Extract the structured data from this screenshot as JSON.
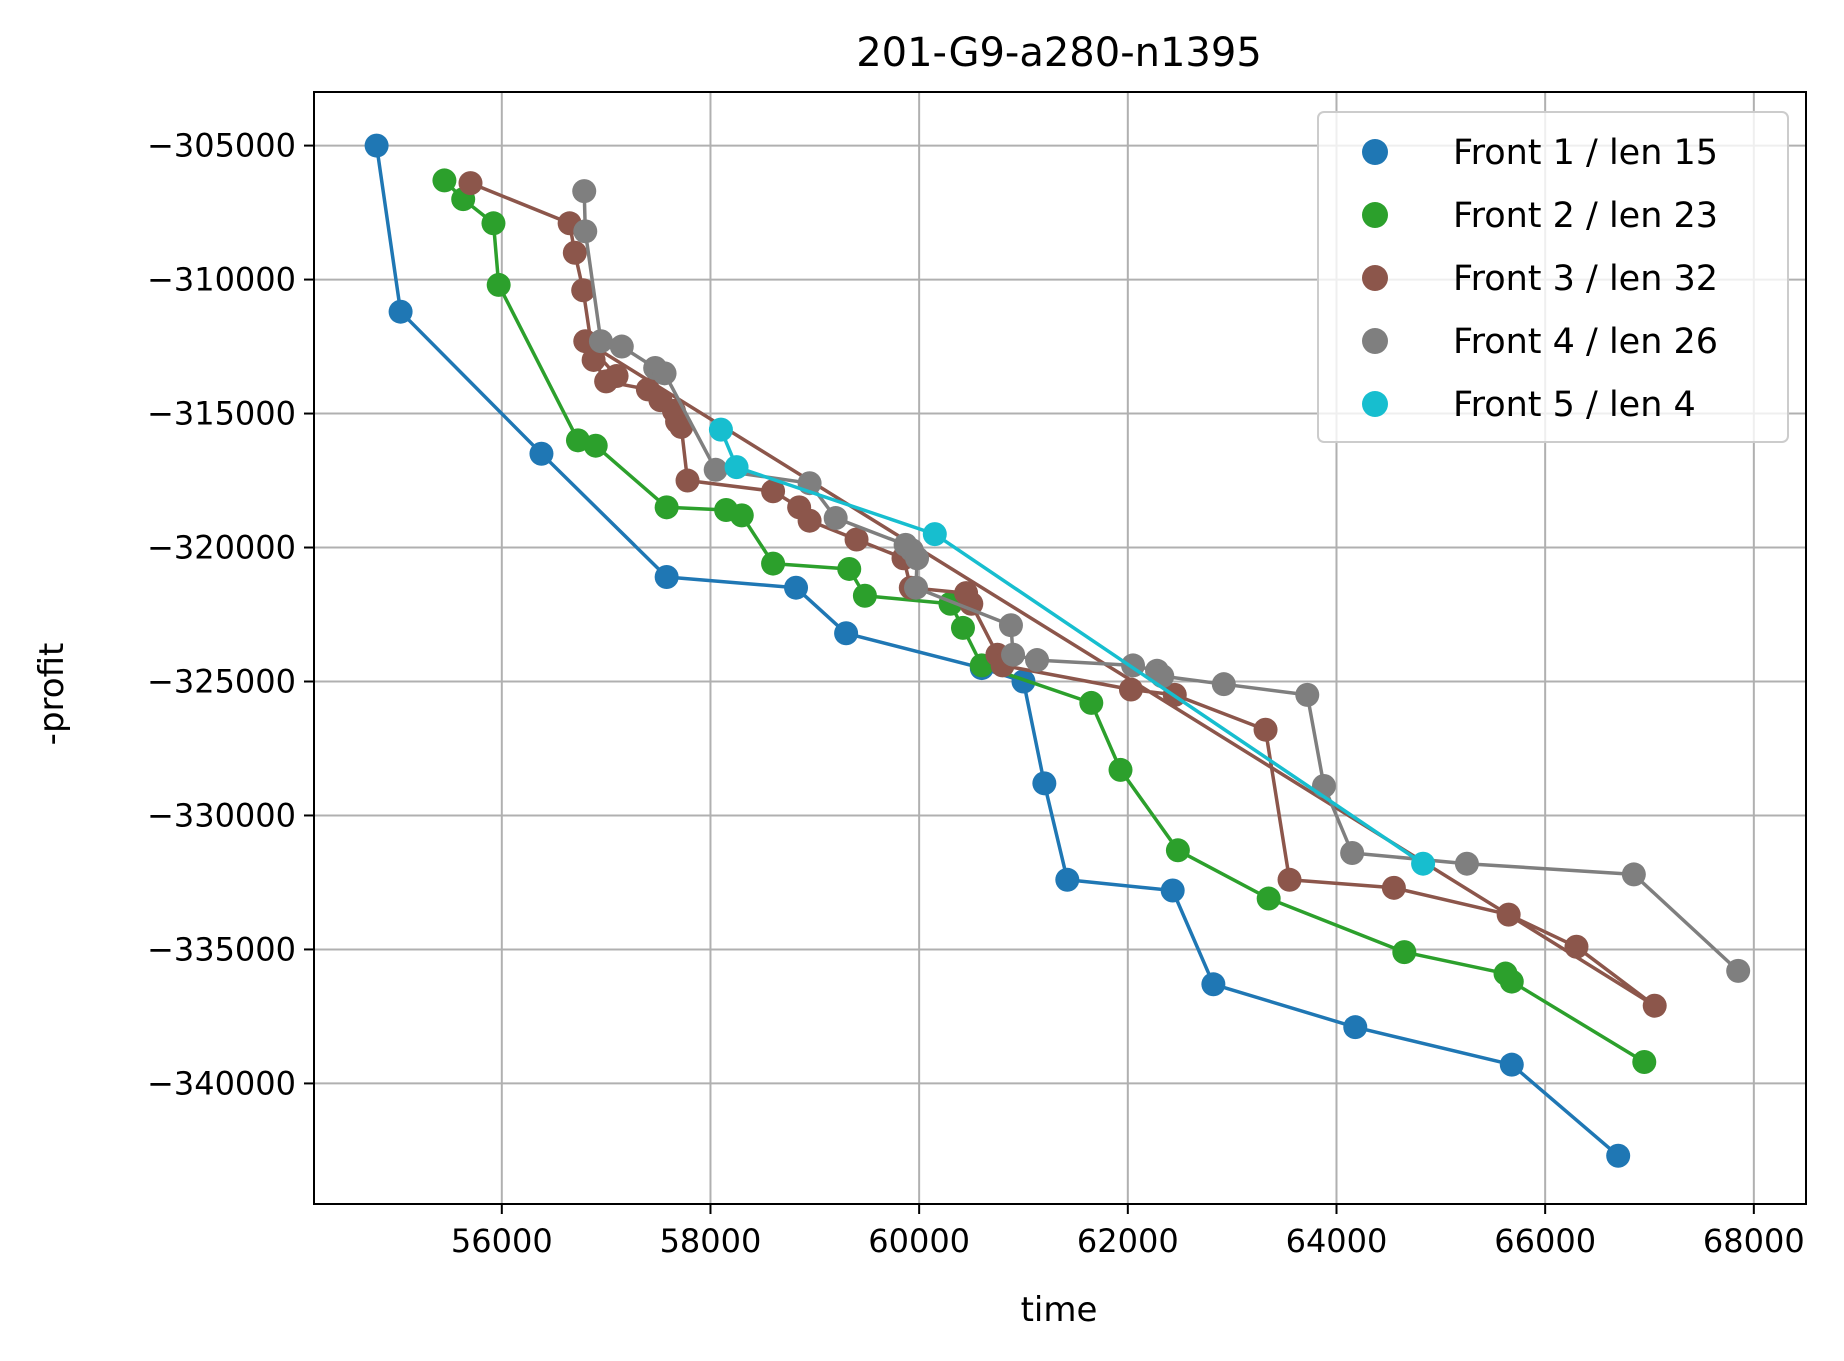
{
  "chart_data": {
    "type": "scatter",
    "title": "201-G9-a280-n1395",
    "xlabel": "time",
    "ylabel": "-profit",
    "xlim": [
      54200,
      68500
    ],
    "ylim": [
      -344500,
      -303000
    ],
    "xticks": [
      56000,
      58000,
      60000,
      62000,
      64000,
      66000,
      68000
    ],
    "xtick_labels": [
      "56000",
      "58000",
      "60000",
      "62000",
      "64000",
      "66000",
      "68000"
    ],
    "yticks": [
      -305000,
      -310000,
      -315000,
      -320000,
      -325000,
      -330000,
      -335000,
      -340000
    ],
    "ytick_labels": [
      "−305000",
      "−310000",
      "−315000",
      "−320000",
      "−325000",
      "−330000",
      "−335000",
      "−340000"
    ],
    "grid": true,
    "legend_position": "top-right",
    "series": [
      {
        "name": "Front 1 / len 15",
        "color": "#1f77b4",
        "points": [
          [
            54800,
            -305000
          ],
          [
            55030,
            -311200
          ],
          [
            56380,
            -316500
          ],
          [
            57580,
            -321100
          ],
          [
            58820,
            -321500
          ],
          [
            59300,
            -323200
          ],
          [
            60600,
            -324500
          ],
          [
            61000,
            -325000
          ],
          [
            61200,
            -328800
          ],
          [
            61420,
            -332400
          ],
          [
            62430,
            -332800
          ],
          [
            62820,
            -336300
          ],
          [
            64180,
            -337900
          ],
          [
            65680,
            -339300
          ],
          [
            66700,
            -342700
          ]
        ]
      },
      {
        "name": "Front 2 / len 23",
        "color": "#2ca02c",
        "points": [
          [
            55450,
            -306300
          ],
          [
            55630,
            -307000
          ],
          [
            55920,
            -307900
          ],
          [
            55970,
            -310200
          ],
          [
            56730,
            -316000
          ],
          [
            56900,
            -316200
          ],
          [
            57580,
            -318500
          ],
          [
            58150,
            -318600
          ],
          [
            58300,
            -318800
          ],
          [
            58600,
            -320600
          ],
          [
            59330,
            -320800
          ],
          [
            59480,
            -321800
          ],
          [
            60300,
            -322100
          ],
          [
            60420,
            -323000
          ],
          [
            60600,
            -324400
          ],
          [
            61650,
            -325800
          ],
          [
            61930,
            -328300
          ],
          [
            62480,
            -331300
          ],
          [
            63350,
            -333100
          ],
          [
            64650,
            -335100
          ],
          [
            65620,
            -335900
          ],
          [
            65680,
            -336200
          ],
          [
            66950,
            -339200
          ]
        ]
      },
      {
        "name": "Front 3 / len 32",
        "color": "#8c564b",
        "points": [
          [
            55700,
            -306400
          ],
          [
            56650,
            -307900
          ],
          [
            56700,
            -309000
          ],
          [
            56780,
            -310400
          ],
          [
            56880,
            -313000
          ],
          [
            57000,
            -313800
          ],
          [
            57400,
            -314100
          ],
          [
            57520,
            -314500
          ],
          [
            57650,
            -314900
          ],
          [
            57680,
            -315300
          ],
          [
            57720,
            -315500
          ],
          [
            57780,
            -317500
          ],
          [
            58600,
            -317900
          ],
          [
            58850,
            -318500
          ],
          [
            58950,
            -319000
          ],
          [
            59400,
            -319700
          ],
          [
            59850,
            -320400
          ],
          [
            59920,
            -321500
          ],
          [
            60450,
            -321700
          ],
          [
            60500,
            -322100
          ],
          [
            60750,
            -324000
          ],
          [
            60800,
            -324400
          ],
          [
            62030,
            -325300
          ],
          [
            62450,
            -325500
          ],
          [
            63320,
            -326800
          ],
          [
            63550,
            -332400
          ],
          [
            64550,
            -332700
          ],
          [
            65650,
            -333700
          ],
          [
            66300,
            -334900
          ],
          [
            67050,
            -337100
          ],
          [
            56800,
            -312300
          ],
          [
            57100,
            -313600
          ]
        ]
      },
      {
        "name": "Front 4 / len 26",
        "color": "#7f7f7f",
        "points": [
          [
            56790,
            -306700
          ],
          [
            56800,
            -308200
          ],
          [
            56950,
            -312300
          ],
          [
            57150,
            -312500
          ],
          [
            57470,
            -313300
          ],
          [
            57560,
            -313500
          ],
          [
            58050,
            -317100
          ],
          [
            58950,
            -317600
          ],
          [
            59200,
            -318900
          ],
          [
            59870,
            -319900
          ],
          [
            59930,
            -320100
          ],
          [
            59980,
            -320400
          ],
          [
            59970,
            -321500
          ],
          [
            60880,
            -322900
          ],
          [
            60900,
            -324000
          ],
          [
            61130,
            -324200
          ],
          [
            62050,
            -324400
          ],
          [
            62280,
            -324600
          ],
          [
            62330,
            -324800
          ],
          [
            62920,
            -325100
          ],
          [
            63720,
            -325500
          ],
          [
            63880,
            -328900
          ],
          [
            64150,
            -331400
          ],
          [
            65250,
            -331800
          ],
          [
            66850,
            -332200
          ],
          [
            67850,
            -335800
          ]
        ]
      },
      {
        "name": "Front 5 / len 4",
        "color": "#17becf",
        "points": [
          [
            58100,
            -315600
          ],
          [
            58250,
            -317000
          ],
          [
            60150,
            -319500
          ],
          [
            64830,
            -331800
          ]
        ]
      }
    ]
  }
}
